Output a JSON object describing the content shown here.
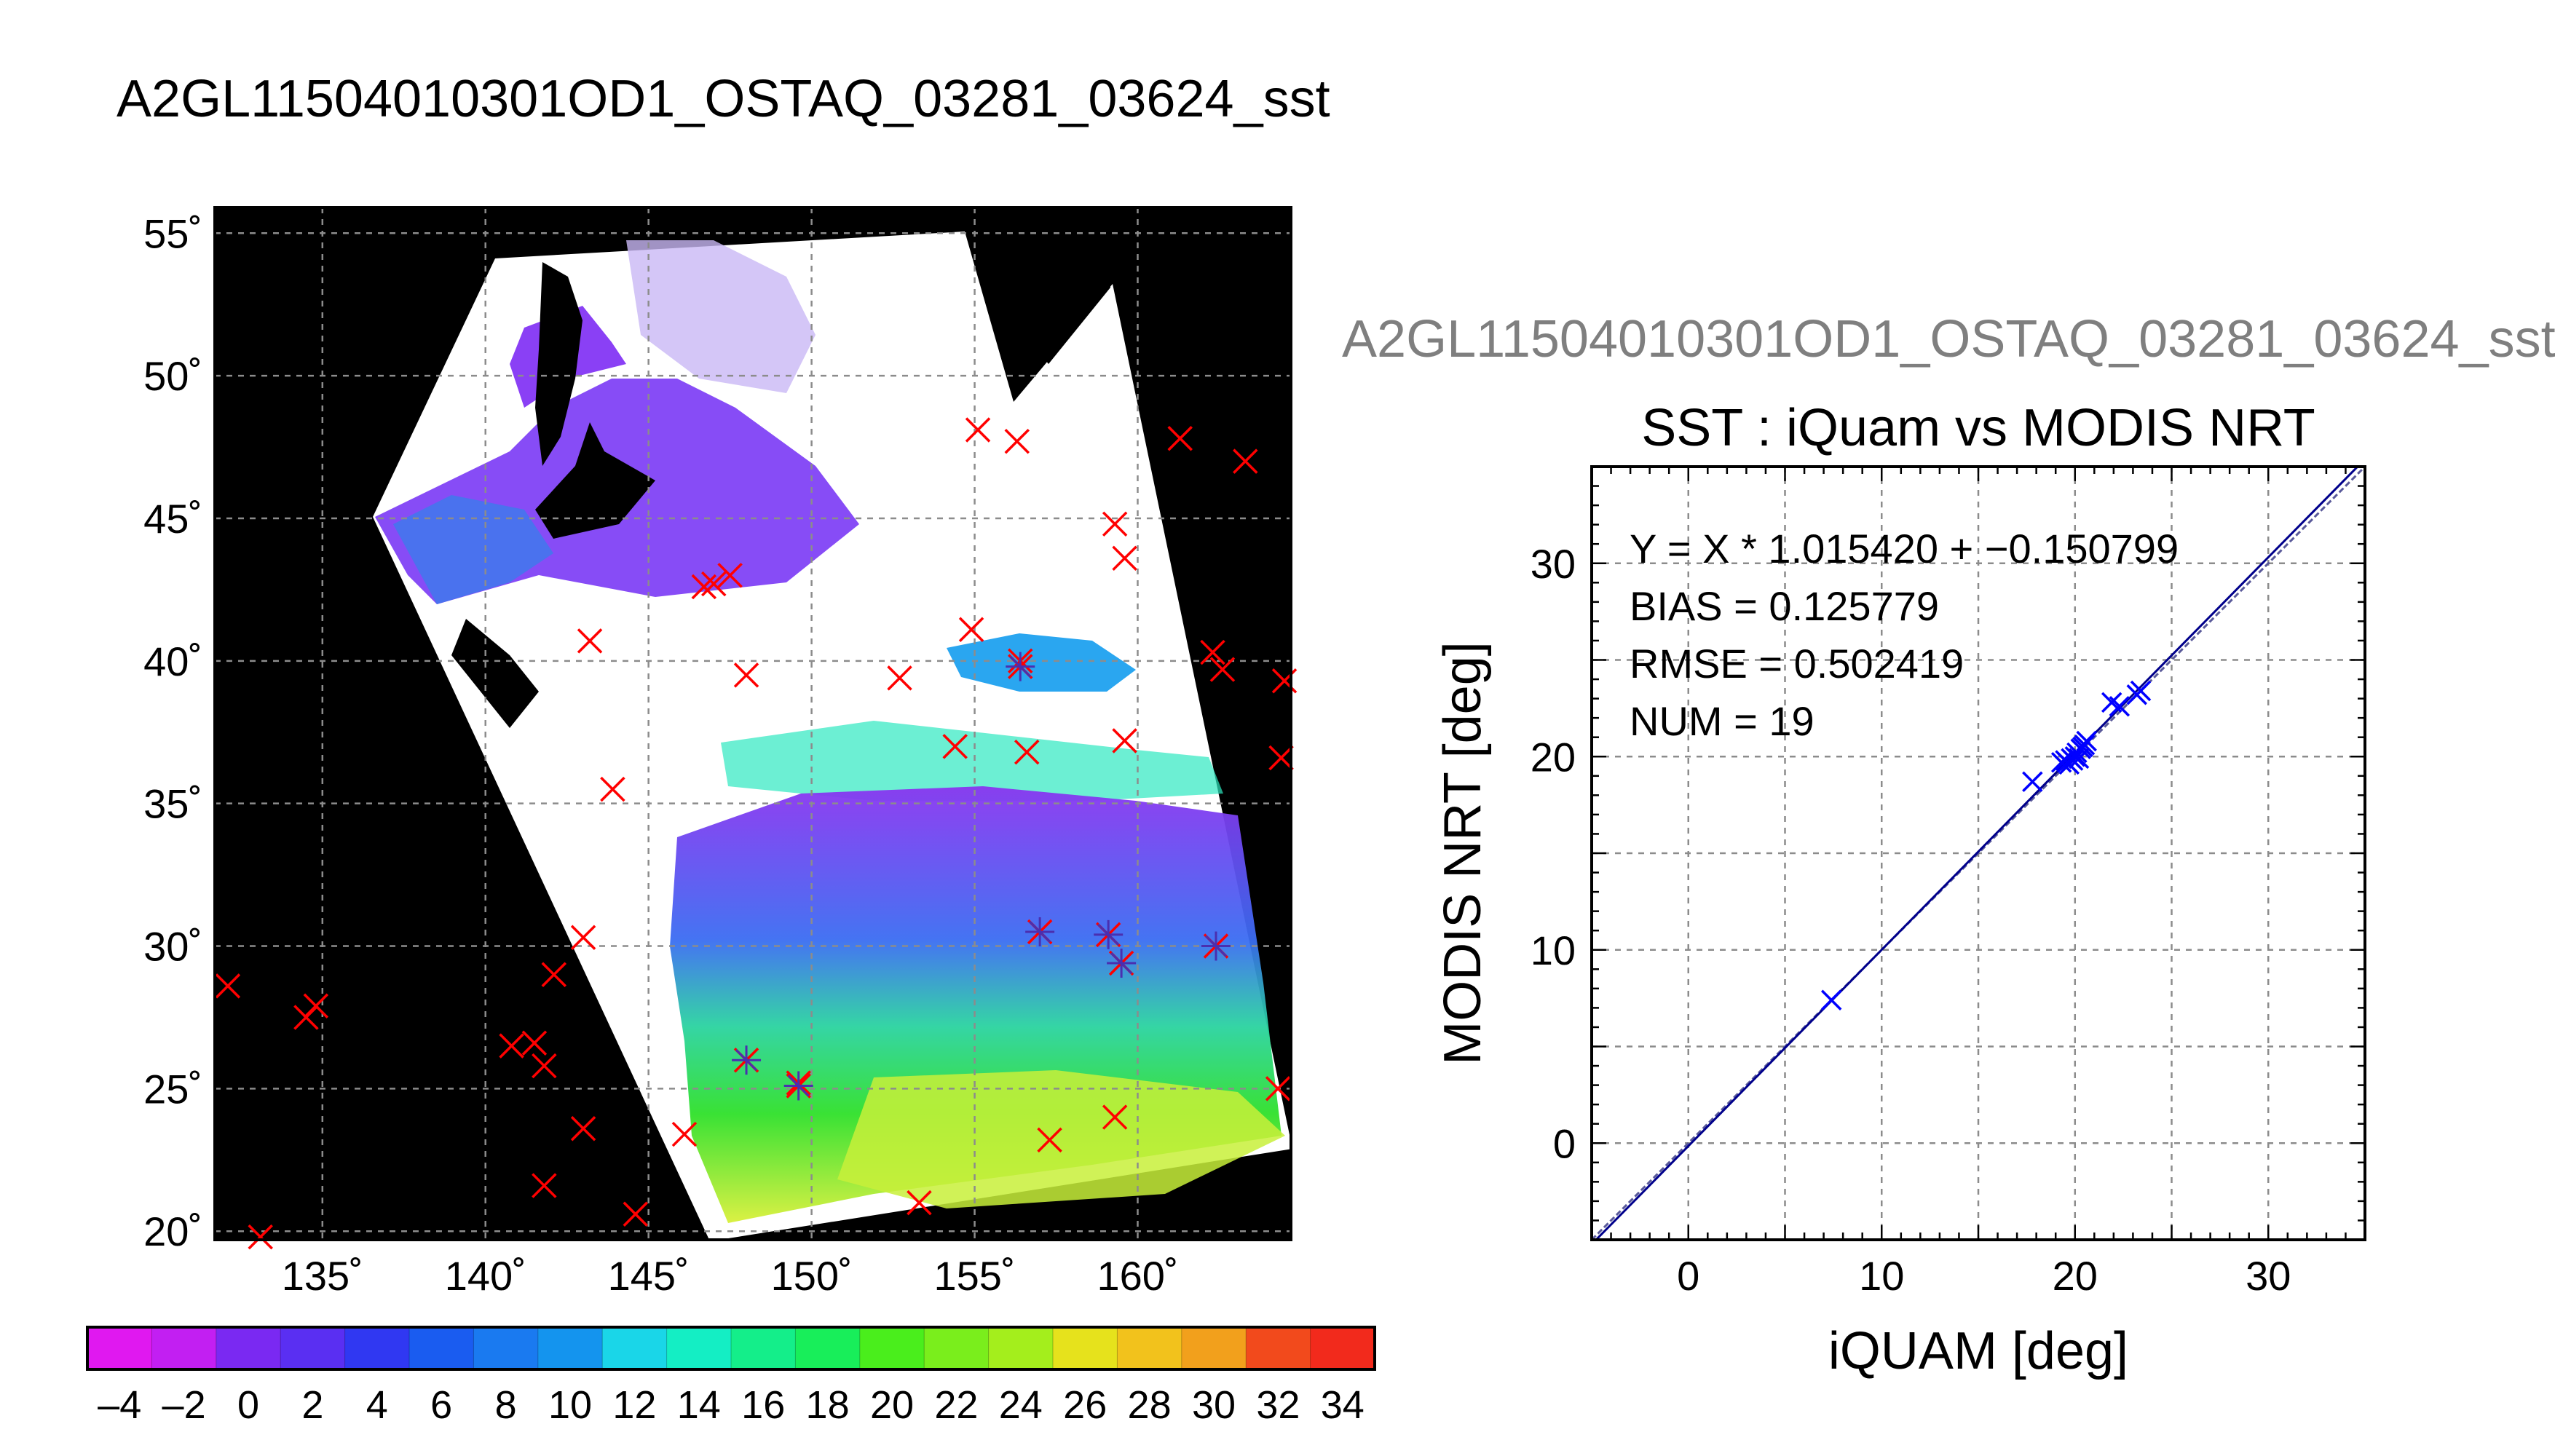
{
  "main_title": "A2GL11504010301OD1_OSTAQ_03281_03624_sst",
  "sub_title": "A2GL11504010301OD1_OSTAQ_03281_03624_sst",
  "colors": {
    "match_marker": "#0000ff",
    "insitu_marker": "#ff0000",
    "fit_line": "#00008b",
    "grid": "#8c8c8c",
    "land": "#000000",
    "cloud": "#ffffff"
  },
  "map": {
    "lon_ticks": [
      135,
      140,
      145,
      150,
      155,
      160
    ],
    "lat_ticks": [
      20,
      25,
      30,
      35,
      40,
      45,
      50,
      55
    ],
    "lon_range": [
      131.7,
      164.7
    ],
    "lat_range": [
      19.7,
      55.9
    ],
    "lon_labels": [
      "135˚",
      "140˚",
      "145˚",
      "150˚",
      "155˚",
      "160˚"
    ],
    "lat_labels": [
      "20˚",
      "25˚",
      "30˚",
      "35˚",
      "40˚",
      "45˚",
      "50˚",
      "55˚"
    ],
    "insitu_points": [
      [
        155.1,
        48.1
      ],
      [
        156.3,
        47.7
      ],
      [
        159.3,
        44.8
      ],
      [
        159.6,
        43.6
      ],
      [
        147.5,
        43.0
      ],
      [
        147.0,
        42.7
      ],
      [
        146.7,
        42.6
      ],
      [
        143.2,
        40.7
      ],
      [
        154.9,
        41.1
      ],
      [
        156.4,
        40.0
      ],
      [
        148.0,
        39.5
      ],
      [
        152.7,
        39.4
      ],
      [
        156.6,
        36.8
      ],
      [
        159.6,
        37.2
      ],
      [
        143.9,
        35.5
      ],
      [
        154.4,
        37.0
      ],
      [
        143.0,
        30.3
      ],
      [
        142.1,
        29.0
      ],
      [
        140.8,
        26.5
      ],
      [
        141.5,
        26.6
      ],
      [
        141.8,
        25.8
      ],
      [
        134.5,
        27.5
      ],
      [
        134.8,
        27.9
      ],
      [
        132.1,
        28.6
      ],
      [
        143.0,
        23.6
      ],
      [
        141.8,
        21.6
      ],
      [
        144.6,
        20.6
      ],
      [
        146.1,
        23.4
      ],
      [
        153.3,
        21.0
      ],
      [
        157.3,
        23.2
      ],
      [
        159.3,
        24.0
      ],
      [
        149.6,
        25.2
      ],
      [
        161.3,
        47.8
      ],
      [
        163.3,
        47.0
      ],
      [
        162.3,
        40.3
      ],
      [
        162.6,
        39.7
      ],
      [
        164.5,
        39.3
      ],
      [
        164.4,
        36.6
      ],
      [
        164.3,
        25.0
      ],
      [
        133.1,
        19.8
      ]
    ],
    "matchup_points": [
      [
        156.4,
        39.8
      ],
      [
        157.0,
        30.5
      ],
      [
        159.1,
        30.4
      ],
      [
        159.5,
        29.4
      ],
      [
        162.4,
        30.0
      ],
      [
        148.0,
        26.0
      ],
      [
        149.6,
        25.1
      ]
    ]
  },
  "colorbar": {
    "labels": [
      "–4",
      "–2",
      "0",
      "2",
      "4",
      "6",
      "8",
      "10",
      "12",
      "14",
      "16",
      "18",
      "20",
      "22",
      "24",
      "26",
      "28",
      "30",
      "32",
      "34"
    ],
    "range": [
      -5,
      35
    ]
  },
  "chart_data": {
    "type": "scatter",
    "title": "SST : iQuam vs MODIS NRT",
    "xlabel": "iQUAM [deg]",
    "ylabel": "MODIS NRT [deg]",
    "xlim": [
      -5,
      35
    ],
    "ylim": [
      -5,
      35
    ],
    "xticks": [
      0,
      10,
      20,
      30
    ],
    "yticks": [
      0,
      10,
      20,
      30
    ],
    "grid": true,
    "annotations": [
      "Y = X * 1.015420 + −0.150799",
      "BIAS = 0.125779",
      "RMSE = 0.502419",
      "NUM = 19"
    ],
    "fit": {
      "slope": 1.01542,
      "intercept": -0.150799
    },
    "x": [
      7.4,
      17.8,
      19.3,
      19.5,
      19.7,
      19.8,
      20.0,
      20.2,
      20.3,
      20.5,
      20.6,
      21.9,
      22.3,
      23.2,
      23.4,
      19.6,
      19.9,
      20.1,
      20.4
    ],
    "y": [
      7.4,
      18.7,
      19.7,
      19.8,
      19.6,
      19.9,
      20.0,
      19.9,
      20.4,
      20.6,
      20.8,
      22.8,
      22.6,
      23.2,
      23.4,
      19.7,
      19.8,
      20.2,
      20.5
    ]
  }
}
